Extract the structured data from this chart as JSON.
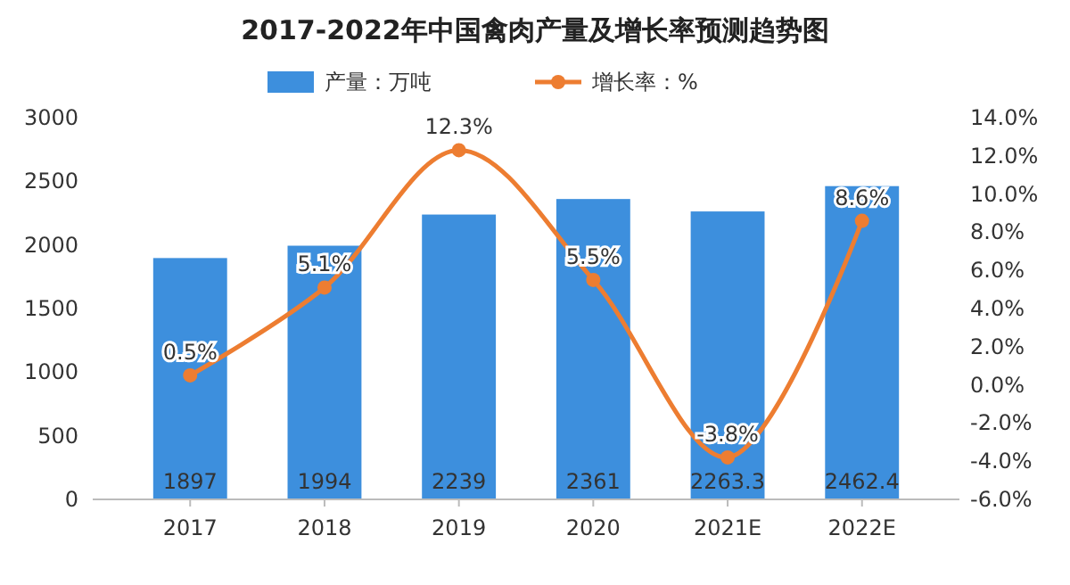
{
  "chart_data": {
    "type": "bar",
    "title": "2017-2022年中国禽肉产量及增长率预测趋势图",
    "categories": [
      "2017",
      "2018",
      "2019",
      "2020",
      "2021E",
      "2022E"
    ],
    "series": [
      {
        "name": "产量：万吨",
        "color": "#3d8fdd",
        "values": [
          1897,
          1994,
          2239,
          2361,
          2263.3,
          2462.4
        ],
        "value_labels": [
          "1897",
          "1994",
          "2239",
          "2361",
          "2263.3",
          "2462.4"
        ]
      },
      {
        "name": "增长率：%",
        "type": "line",
        "axis": "y2",
        "color": "#ed7d31",
        "marker": "circle",
        "values": [
          0.5,
          5.1,
          12.3,
          5.5,
          -3.8,
          8.6
        ],
        "value_labels": [
          "0.5%",
          "5.1%",
          "12.3%",
          "5.5%",
          "-3.8%",
          "8.6%"
        ]
      }
    ],
    "ylim": [
      0,
      3000
    ],
    "yticks": [
      0,
      500,
      1000,
      1500,
      2000,
      2500,
      3000
    ],
    "y2lim": [
      -6,
      14
    ],
    "y2ticks": [
      {
        "value": -6,
        "label": "-6.0%"
      },
      {
        "value": -4,
        "label": "-4.0%"
      },
      {
        "value": -2,
        "label": "-2.0%"
      },
      {
        "value": 0,
        "label": "0.0%"
      },
      {
        "value": 2,
        "label": "2.0%"
      },
      {
        "value": 4,
        "label": "4.0%"
      },
      {
        "value": 6,
        "label": "6.0%"
      },
      {
        "value": 8,
        "label": "8.0%"
      },
      {
        "value": 10,
        "label": "10.0%"
      },
      {
        "value": 12,
        "label": "12.0%"
      },
      {
        "value": 14,
        "label": "14.0%"
      }
    ],
    "legend": "top"
  }
}
